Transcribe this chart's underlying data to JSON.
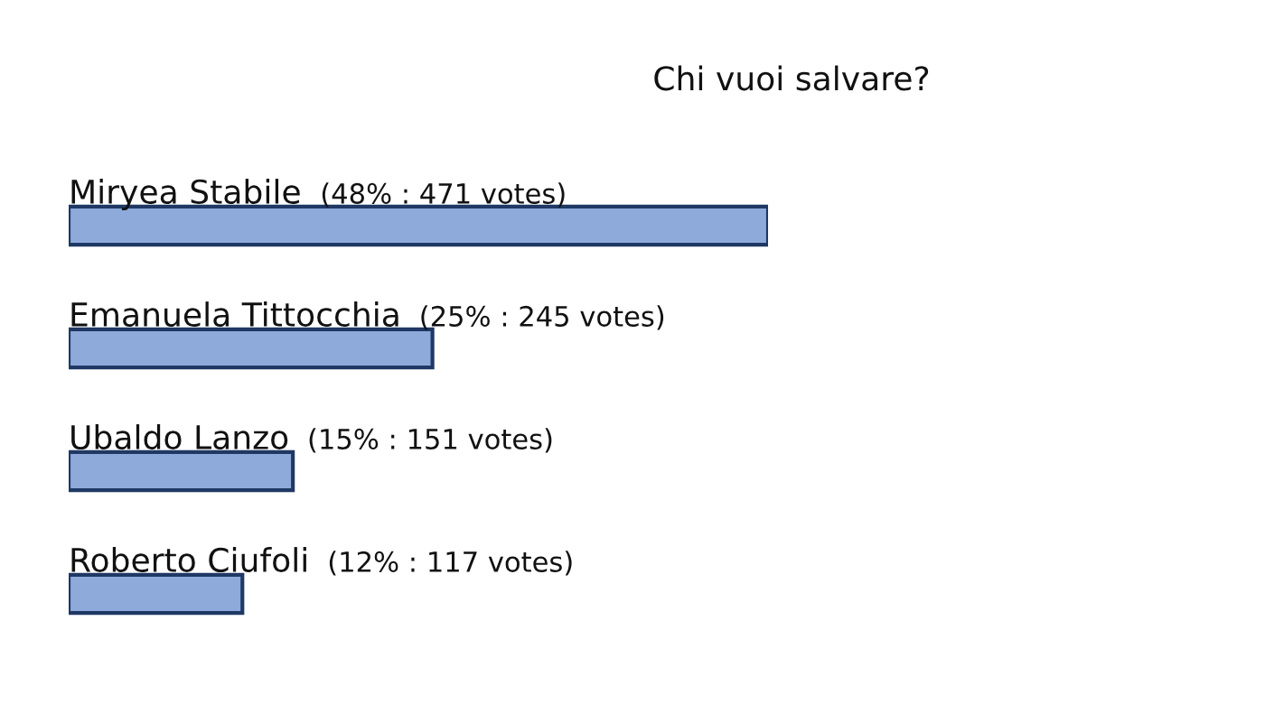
{
  "chart_data": {
    "type": "bar",
    "orientation": "horizontal",
    "title": "Chi vuoi salvare?",
    "categories": [
      "Miryea Stabile",
      "Emanuela Tittocchia",
      "Ubaldo Lanzo",
      "Roberto Ciufoli"
    ],
    "values": [
      471,
      245,
      151,
      117
    ],
    "value_labels": [
      "(48% : 471 votes)",
      "(25% : 245 votes)",
      "(15% : 151 votes)",
      "(12% : 117 votes)"
    ],
    "color": "#8eaadb"
  }
}
